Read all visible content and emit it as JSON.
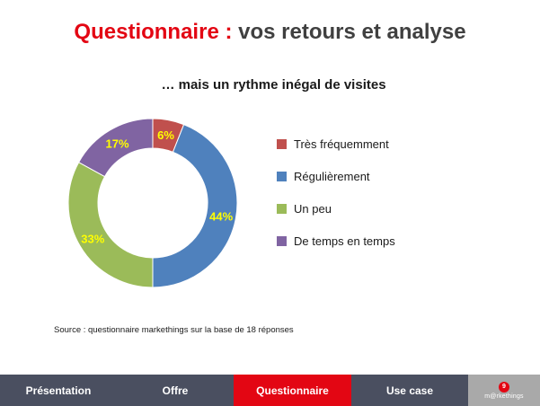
{
  "slide": {
    "title_accent": "Questionnaire :",
    "title_rest": " vos retours et analyse"
  },
  "chart_data": {
    "type": "pie",
    "title": "… mais un rythme inégal de visites",
    "labels": [
      "Très fréquemment",
      "Régulièrement",
      "Un peu",
      "De temps en temps"
    ],
    "values": [
      6,
      44,
      33,
      17
    ],
    "data_labels": [
      "6%",
      "44%",
      "33%",
      "17%"
    ],
    "colors": [
      "#c0504d",
      "#4f81bd",
      "#9bbb59",
      "#8064a2"
    ],
    "data_label_color": "#ffff00",
    "legend_position": "right",
    "donut": true
  },
  "source": "Source : questionnaire markethings sur la base de 18 réponses",
  "nav": {
    "tabs": [
      {
        "label": "Présentation",
        "active": false
      },
      {
        "label": "Offre",
        "active": false
      },
      {
        "label": "Questionnaire",
        "active": true
      },
      {
        "label": "Use case",
        "active": false
      }
    ],
    "page_number": "9",
    "brand": "m@rkethings"
  }
}
